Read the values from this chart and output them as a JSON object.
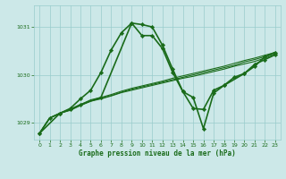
{
  "title": "Graphe pression niveau de la mer (hPa)",
  "bg_color": "#cce8e8",
  "grid_color": "#99cccc",
  "line_color": "#1a6b1a",
  "xlim": [
    -0.5,
    23.5
  ],
  "ylim": [
    1028.65,
    1031.45
  ],
  "yticks": [
    1029,
    1030,
    1031
  ],
  "xticks": [
    0,
    1,
    2,
    3,
    4,
    5,
    6,
    7,
    8,
    9,
    10,
    11,
    12,
    13,
    14,
    15,
    16,
    17,
    18,
    19,
    20,
    21,
    22,
    23
  ],
  "series": [
    {
      "x": [
        0,
        1,
        2,
        3,
        4,
        5,
        6,
        7,
        8,
        9,
        10,
        11,
        12,
        13,
        14,
        15,
        16,
        17,
        18,
        19,
        20,
        21,
        22,
        23
      ],
      "y": [
        1028.78,
        1029.1,
        1029.2,
        1029.26,
        1029.36,
        1029.45,
        1029.5,
        1029.56,
        1029.63,
        1029.68,
        1029.73,
        1029.78,
        1029.83,
        1029.88,
        1029.93,
        1029.97,
        1030.02,
        1030.07,
        1030.12,
        1030.18,
        1030.23,
        1030.28,
        1030.35,
        1030.42
      ],
      "marker": null,
      "lw": 0.8
    },
    {
      "x": [
        0,
        1,
        2,
        3,
        4,
        5,
        6,
        7,
        8,
        9,
        10,
        11,
        12,
        13,
        14,
        15,
        16,
        17,
        18,
        19,
        20,
        21,
        22,
        23
      ],
      "y": [
        1028.78,
        1029.1,
        1029.2,
        1029.27,
        1029.37,
        1029.46,
        1029.51,
        1029.57,
        1029.64,
        1029.7,
        1029.75,
        1029.8,
        1029.85,
        1029.9,
        1029.95,
        1030.0,
        1030.05,
        1030.1,
        1030.15,
        1030.2,
        1030.27,
        1030.32,
        1030.38,
        1030.44
      ],
      "marker": null,
      "lw": 0.8
    },
    {
      "x": [
        0,
        1,
        2,
        3,
        4,
        5,
        6,
        7,
        8,
        9,
        10,
        11,
        12,
        13,
        14,
        15,
        16,
        17,
        18,
        19,
        20,
        21,
        22,
        23
      ],
      "y": [
        1028.78,
        1029.1,
        1029.2,
        1029.28,
        1029.38,
        1029.48,
        1029.53,
        1029.59,
        1029.66,
        1029.72,
        1029.77,
        1029.82,
        1029.87,
        1029.93,
        1029.98,
        1030.03,
        1030.08,
        1030.13,
        1030.18,
        1030.24,
        1030.3,
        1030.35,
        1030.41,
        1030.47
      ],
      "marker": null,
      "lw": 0.8
    },
    {
      "x": [
        0,
        1,
        2,
        3,
        4,
        5,
        6,
        7,
        8,
        9,
        10,
        11,
        12,
        13,
        14,
        15,
        16,
        17,
        18,
        19,
        20,
        21,
        22,
        23
      ],
      "y": [
        1028.78,
        1029.1,
        1029.2,
        1029.3,
        1029.5,
        1029.68,
        1030.05,
        1030.52,
        1030.88,
        1031.08,
        1031.05,
        1031.0,
        1030.62,
        1030.12,
        1029.65,
        1029.3,
        1029.28,
        1029.68,
        1029.78,
        1029.95,
        1030.03,
        1030.22,
        1030.32,
        1030.42
      ],
      "marker": "D",
      "ms": 2.2,
      "lw": 1.2
    },
    {
      "x": [
        0,
        2,
        3,
        4,
        6,
        9,
        10,
        11,
        12,
        13,
        14,
        15,
        16,
        17,
        18,
        20,
        21,
        22,
        23
      ],
      "y": [
        1028.78,
        1029.2,
        1029.28,
        1029.38,
        1029.53,
        1031.08,
        1030.82,
        1030.82,
        1030.55,
        1030.05,
        1029.65,
        1029.53,
        1028.88,
        1029.62,
        1029.78,
        1030.03,
        1030.18,
        1030.38,
        1030.47
      ],
      "marker": "D",
      "ms": 2.2,
      "lw": 1.2
    }
  ]
}
